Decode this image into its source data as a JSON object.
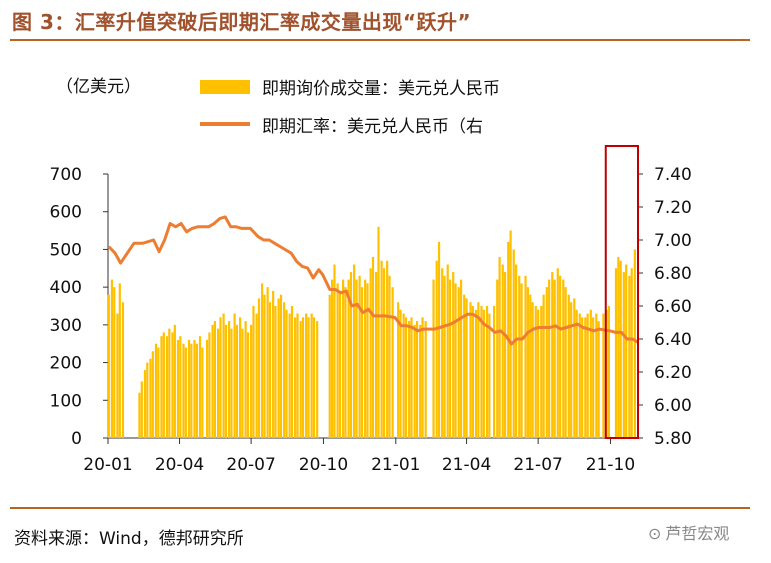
{
  "header": {
    "title": "图 3：汇率升值突破后即期汇率成交量出现“跃升”"
  },
  "footer": {
    "source": "资料来源：Wind，德邦研究所",
    "watermark": "芦哲宏观",
    "watermark_icon": "wechat-icon"
  },
  "colors": {
    "bar": "#FFC000",
    "line": "#ED7D31",
    "highlight": "#C00000",
    "rule": "#B5651D"
  },
  "chart_data": {
    "type": "bar+line",
    "title": "",
    "left_axis_label": "（亿美元）",
    "left_ylim": [
      0,
      700
    ],
    "left_ticks": [
      "0",
      "100",
      "200",
      "300",
      "400",
      "500",
      "600",
      "700"
    ],
    "right_ylim": [
      5.8,
      7.4
    ],
    "right_ticks": [
      "5.80",
      "6.00",
      "6.20",
      "6.40",
      "6.60",
      "6.80",
      "7.00",
      "7.20",
      "7.40"
    ],
    "x_tick_labels": [
      "20-01",
      "20-04",
      "20-07",
      "20-10",
      "21-01",
      "21-04",
      "21-07",
      "21-10"
    ],
    "x_start": "2020-01-01",
    "x_end": "2021-11-05",
    "legend_position": "top",
    "series": [
      {
        "name": "即期询价成交量：美元兑人民币",
        "type": "bar",
        "axis": "left",
        "points": [
          [
            "2020-01-02",
            380
          ],
          [
            "2020-01-06",
            420
          ],
          [
            "2020-01-09",
            400
          ],
          [
            "2020-01-13",
            330
          ],
          [
            "2020-01-16",
            410
          ],
          [
            "2020-01-20",
            360
          ],
          [
            "2020-02-10",
            120
          ],
          [
            "2020-02-13",
            150
          ],
          [
            "2020-02-17",
            180
          ],
          [
            "2020-02-20",
            200
          ],
          [
            "2020-02-24",
            210
          ],
          [
            "2020-02-27",
            230
          ],
          [
            "2020-03-02",
            250
          ],
          [
            "2020-03-05",
            240
          ],
          [
            "2020-03-09",
            270
          ],
          [
            "2020-03-12",
            280
          ],
          [
            "2020-03-16",
            270
          ],
          [
            "2020-03-19",
            290
          ],
          [
            "2020-03-23",
            280
          ],
          [
            "2020-03-26",
            300
          ],
          [
            "2020-03-30",
            260
          ],
          [
            "2020-04-02",
            270
          ],
          [
            "2020-04-06",
            250
          ],
          [
            "2020-04-09",
            240
          ],
          [
            "2020-04-13",
            260
          ],
          [
            "2020-04-16",
            250
          ],
          [
            "2020-04-20",
            260
          ],
          [
            "2020-04-23",
            250
          ],
          [
            "2020-04-27",
            270
          ],
          [
            "2020-04-30",
            240
          ],
          [
            "2020-05-06",
            260
          ],
          [
            "2020-05-09",
            280
          ],
          [
            "2020-05-13",
            300
          ],
          [
            "2020-05-16",
            310
          ],
          [
            "2020-05-20",
            290
          ],
          [
            "2020-05-23",
            320
          ],
          [
            "2020-05-27",
            330
          ],
          [
            "2020-05-30",
            300
          ],
          [
            "2020-06-03",
            310
          ],
          [
            "2020-06-06",
            290
          ],
          [
            "2020-06-10",
            330
          ],
          [
            "2020-06-13",
            300
          ],
          [
            "2020-06-17",
            320
          ],
          [
            "2020-06-20",
            290
          ],
          [
            "2020-06-24",
            310
          ],
          [
            "2020-06-27",
            280
          ],
          [
            "2020-07-01",
            300
          ],
          [
            "2020-07-04",
            350
          ],
          [
            "2020-07-08",
            330
          ],
          [
            "2020-07-11",
            370
          ],
          [
            "2020-07-15",
            410
          ],
          [
            "2020-07-18",
            380
          ],
          [
            "2020-07-22",
            400
          ],
          [
            "2020-07-25",
            360
          ],
          [
            "2020-07-29",
            390
          ],
          [
            "2020-08-01",
            350
          ],
          [
            "2020-08-05",
            370
          ],
          [
            "2020-08-08",
            380
          ],
          [
            "2020-08-12",
            360
          ],
          [
            "2020-08-15",
            340
          ],
          [
            "2020-08-19",
            330
          ],
          [
            "2020-08-22",
            350
          ],
          [
            "2020-08-26",
            320
          ],
          [
            "2020-08-29",
            330
          ],
          [
            "2020-09-02",
            310
          ],
          [
            "2020-09-05",
            320
          ],
          [
            "2020-09-09",
            330
          ],
          [
            "2020-09-12",
            320
          ],
          [
            "2020-09-16",
            330
          ],
          [
            "2020-09-19",
            320
          ],
          [
            "2020-09-23",
            310
          ],
          [
            "2020-10-09",
            380
          ],
          [
            "2020-10-12",
            420
          ],
          [
            "2020-10-15",
            460
          ],
          [
            "2020-10-19",
            410
          ],
          [
            "2020-10-22",
            390
          ],
          [
            "2020-10-26",
            420
          ],
          [
            "2020-10-29",
            400
          ],
          [
            "2020-11-02",
            420
          ],
          [
            "2020-11-05",
            440
          ],
          [
            "2020-11-09",
            460
          ],
          [
            "2020-11-12",
            420
          ],
          [
            "2020-11-16",
            430
          ],
          [
            "2020-11-19",
            400
          ],
          [
            "2020-11-23",
            420
          ],
          [
            "2020-11-26",
            410
          ],
          [
            "2020-11-30",
            450
          ],
          [
            "2020-12-03",
            480
          ],
          [
            "2020-12-07",
            440
          ],
          [
            "2020-12-10",
            560
          ],
          [
            "2020-12-14",
            470
          ],
          [
            "2020-12-17",
            450
          ],
          [
            "2020-12-21",
            470
          ],
          [
            "2020-12-24",
            430
          ],
          [
            "2020-12-28",
            400
          ],
          [
            "2021-01-04",
            360
          ],
          [
            "2021-01-07",
            340
          ],
          [
            "2021-01-11",
            330
          ],
          [
            "2021-01-14",
            320
          ],
          [
            "2021-01-18",
            310
          ],
          [
            "2021-01-21",
            320
          ],
          [
            "2021-01-25",
            300
          ],
          [
            "2021-01-28",
            310
          ],
          [
            "2021-02-01",
            300
          ],
          [
            "2021-02-04",
            320
          ],
          [
            "2021-02-08",
            310
          ],
          [
            "2021-02-18",
            420
          ],
          [
            "2021-02-22",
            470
          ],
          [
            "2021-02-25",
            520
          ],
          [
            "2021-03-01",
            450
          ],
          [
            "2021-03-04",
            430
          ],
          [
            "2021-03-08",
            460
          ],
          [
            "2021-03-11",
            420
          ],
          [
            "2021-03-15",
            440
          ],
          [
            "2021-03-18",
            410
          ],
          [
            "2021-03-22",
            400
          ],
          [
            "2021-03-25",
            420
          ],
          [
            "2021-03-29",
            380
          ],
          [
            "2021-04-01",
            370
          ],
          [
            "2021-04-06",
            360
          ],
          [
            "2021-04-09",
            350
          ],
          [
            "2021-04-13",
            340
          ],
          [
            "2021-04-16",
            360
          ],
          [
            "2021-04-20",
            350
          ],
          [
            "2021-04-23",
            340
          ],
          [
            "2021-04-27",
            350
          ],
          [
            "2021-04-30",
            330
          ],
          [
            "2021-05-06",
            350
          ],
          [
            "2021-05-10",
            420
          ],
          [
            "2021-05-13",
            480
          ],
          [
            "2021-05-17",
            460
          ],
          [
            "2021-05-20",
            440
          ],
          [
            "2021-05-24",
            520
          ],
          [
            "2021-05-27",
            550
          ],
          [
            "2021-05-31",
            500
          ],
          [
            "2021-06-03",
            460
          ],
          [
            "2021-06-07",
            430
          ],
          [
            "2021-06-10",
            410
          ],
          [
            "2021-06-15",
            430
          ],
          [
            "2021-06-18",
            400
          ],
          [
            "2021-06-21",
            380
          ],
          [
            "2021-06-24",
            360
          ],
          [
            "2021-06-28",
            350
          ],
          [
            "2021-07-01",
            340
          ],
          [
            "2021-07-05",
            350
          ],
          [
            "2021-07-08",
            380
          ],
          [
            "2021-07-12",
            400
          ],
          [
            "2021-07-15",
            420
          ],
          [
            "2021-07-19",
            440
          ],
          [
            "2021-07-22",
            420
          ],
          [
            "2021-07-26",
            450
          ],
          [
            "2021-07-29",
            430
          ],
          [
            "2021-08-02",
            420
          ],
          [
            "2021-08-05",
            400
          ],
          [
            "2021-08-09",
            380
          ],
          [
            "2021-08-12",
            360
          ],
          [
            "2021-08-16",
            370
          ],
          [
            "2021-08-19",
            340
          ],
          [
            "2021-08-23",
            330
          ],
          [
            "2021-08-26",
            320
          ],
          [
            "2021-08-30",
            320
          ],
          [
            "2021-09-02",
            330
          ],
          [
            "2021-09-06",
            340
          ],
          [
            "2021-09-09",
            320
          ],
          [
            "2021-09-13",
            330
          ],
          [
            "2021-09-16",
            310
          ],
          [
            "2021-09-22",
            330
          ],
          [
            "2021-09-26",
            340
          ],
          [
            "2021-09-29",
            350
          ],
          [
            "2021-10-08",
            450
          ],
          [
            "2021-10-11",
            480
          ],
          [
            "2021-10-14",
            470
          ],
          [
            "2021-10-18",
            440
          ],
          [
            "2021-10-21",
            460
          ],
          [
            "2021-10-25",
            430
          ],
          [
            "2021-10-28",
            450
          ],
          [
            "2021-11-01",
            500
          ]
        ]
      },
      {
        "name": "即期汇率：美元兑人民币（右",
        "type": "line",
        "axis": "right",
        "points": [
          [
            "2020-01-02",
            6.96
          ],
          [
            "2020-01-10",
            6.92
          ],
          [
            "2020-01-17",
            6.86
          ],
          [
            "2020-02-03",
            6.98
          ],
          [
            "2020-02-14",
            6.98
          ],
          [
            "2020-02-28",
            7.0
          ],
          [
            "2020-03-06",
            6.93
          ],
          [
            "2020-03-13",
            7.0
          ],
          [
            "2020-03-20",
            7.1
          ],
          [
            "2020-03-27",
            7.08
          ],
          [
            "2020-04-03",
            7.1
          ],
          [
            "2020-04-10",
            7.05
          ],
          [
            "2020-04-17",
            7.07
          ],
          [
            "2020-04-24",
            7.08
          ],
          [
            "2020-05-08",
            7.08
          ],
          [
            "2020-05-15",
            7.1
          ],
          [
            "2020-05-22",
            7.13
          ],
          [
            "2020-05-29",
            7.14
          ],
          [
            "2020-06-05",
            7.08
          ],
          [
            "2020-06-12",
            7.08
          ],
          [
            "2020-06-19",
            7.07
          ],
          [
            "2020-06-30",
            7.07
          ],
          [
            "2020-07-10",
            7.02
          ],
          [
            "2020-07-17",
            7.0
          ],
          [
            "2020-07-24",
            7.0
          ],
          [
            "2020-07-31",
            6.98
          ],
          [
            "2020-08-07",
            6.96
          ],
          [
            "2020-08-14",
            6.94
          ],
          [
            "2020-08-21",
            6.92
          ],
          [
            "2020-08-28",
            6.87
          ],
          [
            "2020-09-04",
            6.84
          ],
          [
            "2020-09-11",
            6.83
          ],
          [
            "2020-09-18",
            6.77
          ],
          [
            "2020-09-25",
            6.82
          ],
          [
            "2020-09-30",
            6.79
          ],
          [
            "2020-10-09",
            6.7
          ],
          [
            "2020-10-16",
            6.7
          ],
          [
            "2020-10-23",
            6.68
          ],
          [
            "2020-10-30",
            6.69
          ],
          [
            "2020-11-06",
            6.6
          ],
          [
            "2020-11-13",
            6.61
          ],
          [
            "2020-11-20",
            6.56
          ],
          [
            "2020-11-27",
            6.58
          ],
          [
            "2020-12-04",
            6.54
          ],
          [
            "2020-12-11",
            6.54
          ],
          [
            "2020-12-18",
            6.54
          ],
          [
            "2020-12-31",
            6.53
          ],
          [
            "2021-01-08",
            6.48
          ],
          [
            "2021-01-15",
            6.48
          ],
          [
            "2021-01-22",
            6.47
          ],
          [
            "2021-01-29",
            6.45
          ],
          [
            "2021-02-05",
            6.46
          ],
          [
            "2021-02-19",
            6.46
          ],
          [
            "2021-02-26",
            6.47
          ],
          [
            "2021-03-05",
            6.48
          ],
          [
            "2021-03-12",
            6.49
          ],
          [
            "2021-03-19",
            6.51
          ],
          [
            "2021-03-26",
            6.53
          ],
          [
            "2021-04-02",
            6.55
          ],
          [
            "2021-04-09",
            6.55
          ],
          [
            "2021-04-16",
            6.53
          ],
          [
            "2021-04-23",
            6.49
          ],
          [
            "2021-04-30",
            6.47
          ],
          [
            "2021-05-07",
            6.44
          ],
          [
            "2021-05-14",
            6.45
          ],
          [
            "2021-05-21",
            6.42
          ],
          [
            "2021-05-28",
            6.37
          ],
          [
            "2021-06-04",
            6.4
          ],
          [
            "2021-06-11",
            6.4
          ],
          [
            "2021-06-18",
            6.44
          ],
          [
            "2021-06-25",
            6.46
          ],
          [
            "2021-07-02",
            6.47
          ],
          [
            "2021-07-09",
            6.47
          ],
          [
            "2021-07-16",
            6.47
          ],
          [
            "2021-07-23",
            6.48
          ],
          [
            "2021-07-30",
            6.46
          ],
          [
            "2021-08-06",
            6.47
          ],
          [
            "2021-08-13",
            6.48
          ],
          [
            "2021-08-20",
            6.49
          ],
          [
            "2021-08-27",
            6.47
          ],
          [
            "2021-09-03",
            6.46
          ],
          [
            "2021-09-10",
            6.45
          ],
          [
            "2021-09-17",
            6.46
          ],
          [
            "2021-09-30",
            6.45
          ],
          [
            "2021-10-08",
            6.44
          ],
          [
            "2021-10-15",
            6.44
          ],
          [
            "2021-10-22",
            6.4
          ],
          [
            "2021-10-29",
            6.4
          ],
          [
            "2021-11-05",
            6.38
          ]
        ]
      }
    ],
    "highlight_box": {
      "from": "2021-09-25",
      "to": "2021-11-05"
    }
  }
}
